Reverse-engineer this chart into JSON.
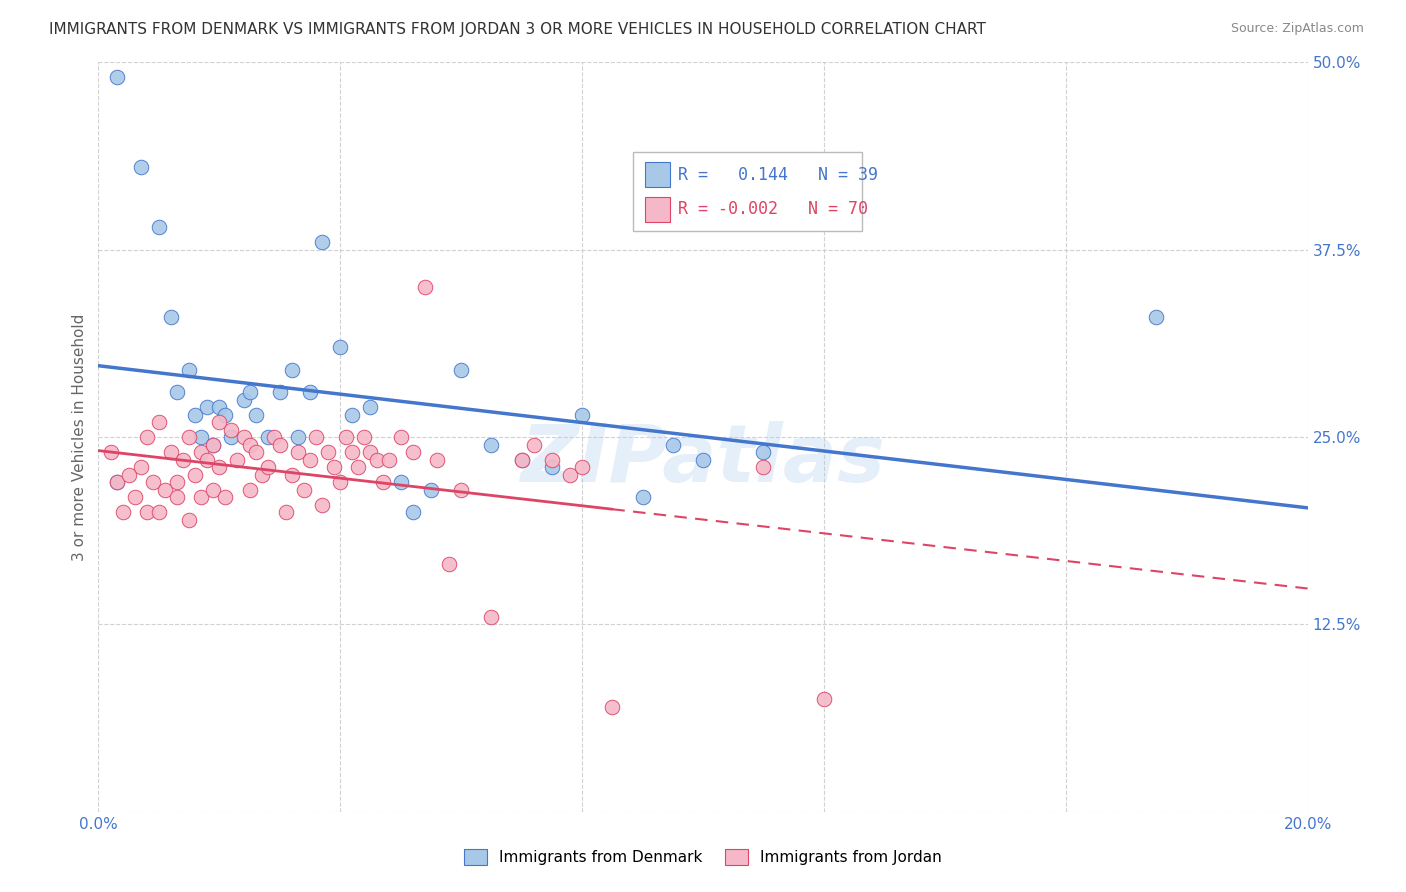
{
  "title": "IMMIGRANTS FROM DENMARK VS IMMIGRANTS FROM JORDAN 3 OR MORE VEHICLES IN HOUSEHOLD CORRELATION CHART",
  "source": "Source: ZipAtlas.com",
  "ylabel": "3 or more Vehicles in Household",
  "xlim": [
    0.0,
    0.2
  ],
  "ylim": [
    0.0,
    0.5
  ],
  "xticks": [
    0.0,
    0.04,
    0.08,
    0.12,
    0.16,
    0.2
  ],
  "yticks": [
    0.0,
    0.125,
    0.25,
    0.375,
    0.5
  ],
  "xticklabels_left": [
    "0.0%",
    "",
    "",
    "",
    "",
    "20.0%"
  ],
  "yticklabels_right": [
    "",
    "12.5%",
    "25.0%",
    "37.5%",
    "50.0%"
  ],
  "R_denmark": 0.144,
  "N_denmark": 39,
  "R_jordan": -0.002,
  "N_jordan": 70,
  "denmark_color": "#a8c8e8",
  "jordan_color": "#f5b8c8",
  "line_denmark_color": "#4477cc",
  "line_jordan_color": "#dd4466",
  "denmark_x": [
    0.003,
    0.007,
    0.01,
    0.012,
    0.013,
    0.015,
    0.016,
    0.017,
    0.018,
    0.019,
    0.02,
    0.021,
    0.022,
    0.024,
    0.025,
    0.026,
    0.028,
    0.03,
    0.032,
    0.033,
    0.035,
    0.037,
    0.04,
    0.042,
    0.045,
    0.05,
    0.052,
    0.055,
    0.06,
    0.065,
    0.07,
    0.075,
    0.08,
    0.09,
    0.095,
    0.1,
    0.11,
    0.175,
    0.003
  ],
  "denmark_y": [
    0.22,
    0.43,
    0.39,
    0.33,
    0.28,
    0.295,
    0.265,
    0.25,
    0.27,
    0.245,
    0.27,
    0.265,
    0.25,
    0.275,
    0.28,
    0.265,
    0.25,
    0.28,
    0.295,
    0.25,
    0.28,
    0.38,
    0.31,
    0.265,
    0.27,
    0.22,
    0.2,
    0.215,
    0.295,
    0.245,
    0.235,
    0.23,
    0.265,
    0.21,
    0.245,
    0.235,
    0.24,
    0.33,
    0.49
  ],
  "jordan_x": [
    0.002,
    0.003,
    0.004,
    0.005,
    0.006,
    0.007,
    0.008,
    0.008,
    0.009,
    0.01,
    0.01,
    0.011,
    0.012,
    0.013,
    0.013,
    0.014,
    0.015,
    0.015,
    0.016,
    0.017,
    0.017,
    0.018,
    0.019,
    0.019,
    0.02,
    0.02,
    0.021,
    0.022,
    0.023,
    0.024,
    0.025,
    0.025,
    0.026,
    0.027,
    0.028,
    0.029,
    0.03,
    0.031,
    0.032,
    0.033,
    0.034,
    0.035,
    0.036,
    0.037,
    0.038,
    0.039,
    0.04,
    0.041,
    0.042,
    0.043,
    0.044,
    0.045,
    0.046,
    0.047,
    0.048,
    0.05,
    0.052,
    0.054,
    0.056,
    0.058,
    0.06,
    0.065,
    0.07,
    0.072,
    0.075,
    0.078,
    0.08,
    0.085,
    0.11,
    0.12
  ],
  "jordan_y": [
    0.24,
    0.22,
    0.2,
    0.225,
    0.21,
    0.23,
    0.25,
    0.2,
    0.22,
    0.26,
    0.2,
    0.215,
    0.24,
    0.22,
    0.21,
    0.235,
    0.25,
    0.195,
    0.225,
    0.24,
    0.21,
    0.235,
    0.245,
    0.215,
    0.26,
    0.23,
    0.21,
    0.255,
    0.235,
    0.25,
    0.245,
    0.215,
    0.24,
    0.225,
    0.23,
    0.25,
    0.245,
    0.2,
    0.225,
    0.24,
    0.215,
    0.235,
    0.25,
    0.205,
    0.24,
    0.23,
    0.22,
    0.25,
    0.24,
    0.23,
    0.25,
    0.24,
    0.235,
    0.22,
    0.235,
    0.25,
    0.24,
    0.35,
    0.235,
    0.165,
    0.215,
    0.13,
    0.235,
    0.245,
    0.235,
    0.225,
    0.23,
    0.07,
    0.23,
    0.075
  ],
  "watermark": "ZIPatlas",
  "background_color": "#ffffff",
  "grid_color": "#cccccc",
  "title_fontsize": 11,
  "source_fontsize": 9,
  "legend_fontsize": 12,
  "axis_label_fontsize": 11,
  "tick_fontsize": 11
}
